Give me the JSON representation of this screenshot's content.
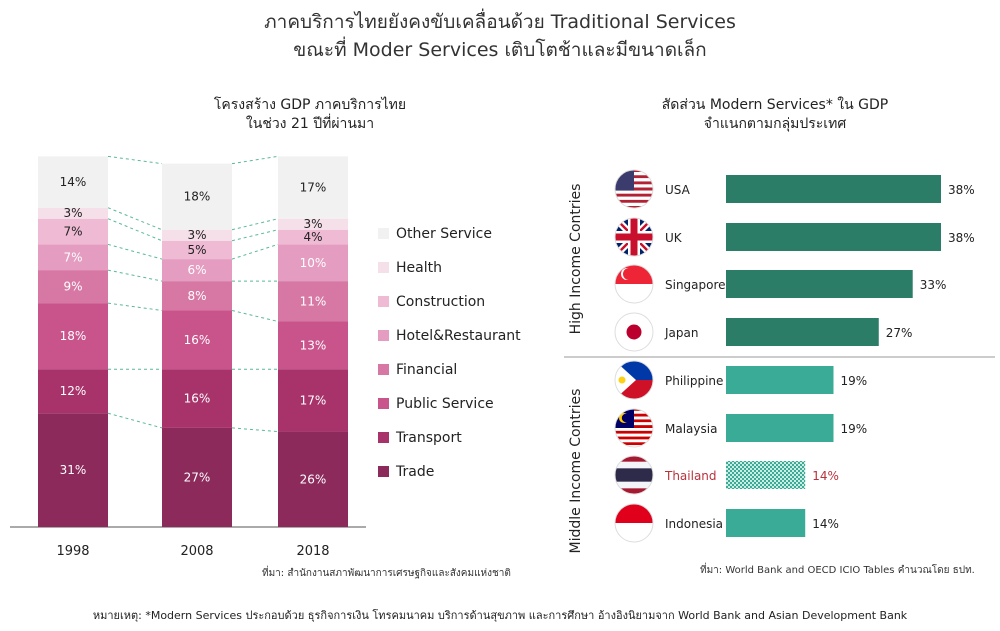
{
  "title": {
    "line1": "ภาคบริการไทยยังคงขับเคลื่อนด้วย Traditional Services",
    "line2": "ขณะที่ Moder Services เติบโตช้าและมีขนาดเล็ก"
  },
  "chart_data": [
    {
      "type": "bar",
      "stacked": true,
      "title": "โครงสร้าง GDP ภาคบริการไทย\nในช่วง 21 ปีที่ผ่านมา",
      "title_lines": [
        "โครงสร้าง GDP ภาคบริการไทย",
        "ในช่วง 21 ปีที่ผ่านมา"
      ],
      "categories": [
        "1998",
        "2008",
        "2018"
      ],
      "ylim": [
        0,
        100
      ],
      "series": [
        {
          "name": "Trade",
          "values": [
            31,
            27,
            26
          ],
          "color": "#8c2a5c"
        },
        {
          "name": "Transport",
          "values": [
            12,
            16,
            17
          ],
          "color": "#a8336b"
        },
        {
          "name": "Public Service",
          "values": [
            18,
            16,
            13
          ],
          "color": "#c9548c"
        },
        {
          "name": "Financial",
          "values": [
            9,
            8,
            11
          ],
          "color": "#d778a4"
        },
        {
          "name": "Hotel&Restaurant",
          "values": [
            7,
            6,
            10
          ],
          "color": "#e49cc0"
        },
        {
          "name": "Construction",
          "values": [
            7,
            5,
            4
          ],
          "color": "#eebad4"
        },
        {
          "name": "Health",
          "values": [
            3,
            3,
            3
          ],
          "color": "#f5dfe9"
        },
        {
          "name": "Other Service",
          "values": [
            14,
            18,
            17
          ],
          "color": "#f1f1f1"
        }
      ],
      "legend_position": "right",
      "source": "ที่มา: สำนักงานสภาพัฒนาการเศรษฐกิจและสังคมแห่งชาติ"
    },
    {
      "type": "bar",
      "orientation": "horizontal",
      "title": "สัดส่วน Modern Services* ใน GDP\nจำแนกตามกลุ่มประเทศ",
      "title_lines": [
        "สัดส่วน Modern Services* ใน GDP",
        "จำแนกตามกลุ่มประเทศ"
      ],
      "categories": [
        "USA",
        "UK",
        "Singapore",
        "Japan",
        "Philippine",
        "Malaysia",
        "Thailand",
        "Indonesia"
      ],
      "values": [
        38,
        38,
        33,
        27,
        19,
        19,
        14,
        14
      ],
      "value_labels": [
        "38%",
        "38%",
        "33%",
        "27%",
        "19%",
        "19%",
        "14%",
        "14%"
      ],
      "groups": [
        {
          "name": "High Income Contries",
          "members": [
            "USA",
            "UK",
            "Singapore",
            "Japan"
          ],
          "color": "#2b7d68"
        },
        {
          "name": "Middle Income Contries",
          "members": [
            "Philippine",
            "Malaysia",
            "Thailand",
            "Indonesia"
          ],
          "color": "#3aab96"
        }
      ],
      "highlight": {
        "category": "Thailand",
        "color": "#b8323c",
        "pattern": "checkered"
      },
      "xlim": [
        0,
        38
      ],
      "source": "ที่มา: World Bank and OECD ICIO Tables คำนวณโดย ธปท."
    }
  ],
  "footnote": "หมายเหตุ: *Modern Services ประกอบด้วย ธุรกิจการเงิน โทรคมนาคม บริการด้านสุขภาพ และการศึกษา อ้างอิงนิยามจาก World Bank and Asian Development Bank"
}
